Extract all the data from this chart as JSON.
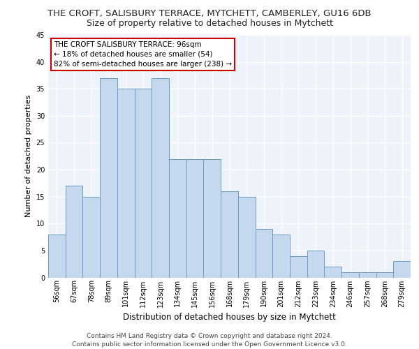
{
  "title": "THE CROFT, SALISBURY TERRACE, MYTCHETT, CAMBERLEY, GU16 6DB",
  "subtitle": "Size of property relative to detached houses in Mytchett",
  "xlabel": "Distribution of detached houses by size in Mytchett",
  "ylabel": "Number of detached properties",
  "categories": [
    "56sqm",
    "67sqm",
    "78sqm",
    "89sqm",
    "101sqm",
    "112sqm",
    "123sqm",
    "134sqm",
    "145sqm",
    "156sqm",
    "168sqm",
    "179sqm",
    "190sqm",
    "201sqm",
    "212sqm",
    "223sqm",
    "234sqm",
    "246sqm",
    "257sqm",
    "268sqm",
    "279sqm"
  ],
  "values": [
    8,
    17,
    15,
    37,
    35,
    35,
    37,
    22,
    22,
    22,
    16,
    15,
    9,
    8,
    4,
    5,
    2,
    1,
    1,
    1,
    3
  ],
  "bar_color": "#c5d8ed",
  "bar_edge_color": "#6b9dc2",
  "annotation_text": "THE CROFT SALISBURY TERRACE: 96sqm\n← 18% of detached houses are smaller (54)\n82% of semi-detached houses are larger (238) →",
  "annotation_box_color": "#ffffff",
  "annotation_box_edge": "#cc0000",
  "ylim": [
    0,
    45
  ],
  "yticks": [
    0,
    5,
    10,
    15,
    20,
    25,
    30,
    35,
    40,
    45
  ],
  "bg_color": "#eef2f9",
  "grid_color": "#ffffff",
  "footer": "Contains HM Land Registry data © Crown copyright and database right 2024.\nContains public sector information licensed under the Open Government Licence v3.0.",
  "title_fontsize": 9.5,
  "subtitle_fontsize": 9,
  "xlabel_fontsize": 8.5,
  "ylabel_fontsize": 8,
  "tick_fontsize": 7,
  "annot_fontsize": 7.5,
  "footer_fontsize": 6.5
}
